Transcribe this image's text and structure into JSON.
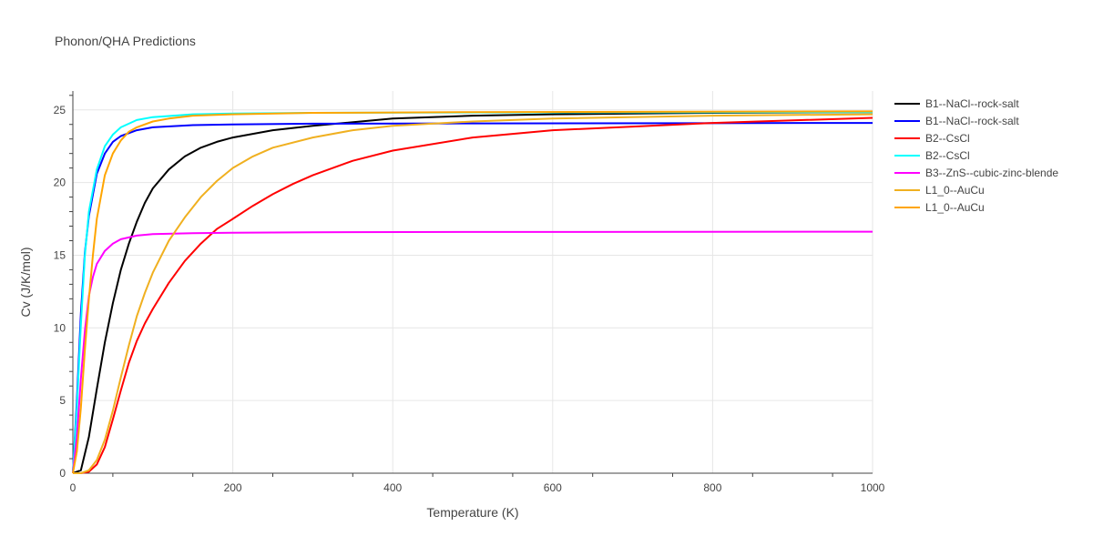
{
  "chart_data": {
    "type": "line",
    "title": "Phonon/QHA Predictions",
    "xlabel": "Temperature (K)",
    "ylabel": "Cv (J/K/mol)",
    "xlim": [
      0,
      1000
    ],
    "ylim": [
      0,
      26.3
    ],
    "x_ticks": [
      "0",
      "200",
      "400",
      "600",
      "800",
      "1000"
    ],
    "y_ticks": [
      "0",
      "5",
      "10",
      "15",
      "20",
      "25"
    ],
    "grid": true,
    "legend_position": "top-right, outside plot",
    "series": [
      {
        "name": "B1--NaCl--rock-salt",
        "color": "#000000",
        "x": [
          0,
          10,
          20,
          30,
          40,
          50,
          60,
          70,
          80,
          90,
          100,
          120,
          140,
          160,
          180,
          200,
          250,
          300,
          400,
          500,
          600,
          800,
          1000
        ],
        "y": [
          0,
          0.2,
          2.5,
          5.8,
          9.0,
          11.7,
          14.0,
          15.8,
          17.3,
          18.6,
          19.6,
          20.9,
          21.8,
          22.4,
          22.8,
          23.1,
          23.6,
          23.9,
          24.4,
          24.6,
          24.7,
          24.8,
          24.85
        ]
      },
      {
        "name": "B1--NaCl--rock-salt",
        "color": "#0000ff",
        "x": [
          0,
          5,
          10,
          15,
          20,
          30,
          40,
          50,
          60,
          80,
          100,
          150,
          200,
          300,
          500,
          1000
        ],
        "y": [
          0,
          5.0,
          11.0,
          15.2,
          17.7,
          20.6,
          22.0,
          22.8,
          23.2,
          23.6,
          23.8,
          23.95,
          24.0,
          24.05,
          24.07,
          24.1
        ]
      },
      {
        "name": "B2--CsCl",
        "color": "#ff0000",
        "x": [
          0,
          10,
          20,
          30,
          40,
          50,
          60,
          70,
          80,
          90,
          100,
          120,
          140,
          160,
          180,
          200,
          225,
          250,
          275,
          300,
          350,
          400,
          500,
          600,
          800,
          1000
        ],
        "y": [
          0,
          0,
          0.1,
          0.6,
          1.8,
          3.7,
          5.7,
          7.6,
          9.1,
          10.3,
          11.3,
          13.1,
          14.6,
          15.8,
          16.8,
          17.5,
          18.4,
          19.2,
          19.9,
          20.5,
          21.5,
          22.2,
          23.1,
          23.6,
          24.1,
          24.45
        ]
      },
      {
        "name": "B2--CsCl",
        "color": "#00ffff",
        "x": [
          0,
          5,
          10,
          15,
          20,
          30,
          40,
          50,
          60,
          80,
          100,
          150,
          200,
          300,
          500,
          1000
        ],
        "y": [
          0,
          4.5,
          10.2,
          15.0,
          18.0,
          20.9,
          22.5,
          23.3,
          23.8,
          24.3,
          24.5,
          24.7,
          24.75,
          24.8,
          24.82,
          24.85
        ]
      },
      {
        "name": "B3--ZnS--cubic-zinc-blende",
        "color": "#ff00ff",
        "x": [
          0,
          5,
          10,
          15,
          20,
          25,
          30,
          40,
          50,
          60,
          80,
          100,
          150,
          200,
          300,
          500,
          1000
        ],
        "y": [
          0,
          2.5,
          6.5,
          9.8,
          12.2,
          13.5,
          14.4,
          15.3,
          15.8,
          16.1,
          16.35,
          16.45,
          16.52,
          16.55,
          16.58,
          16.6,
          16.62
        ]
      },
      {
        "name": "L1_0--AuCu",
        "color": "#f0b020",
        "x": [
          0,
          10,
          20,
          30,
          40,
          50,
          60,
          70,
          80,
          90,
          100,
          120,
          140,
          160,
          180,
          200,
          225,
          250,
          300,
          350,
          400,
          500,
          600,
          800,
          1000
        ],
        "y": [
          0,
          0,
          0.2,
          0.9,
          2.3,
          4.3,
          6.6,
          8.8,
          10.8,
          12.4,
          13.8,
          16.0,
          17.6,
          19.0,
          20.1,
          21.0,
          21.8,
          22.4,
          23.1,
          23.6,
          23.9,
          24.2,
          24.4,
          24.6,
          24.7
        ]
      },
      {
        "name": "L1_0--AuCu",
        "color": "#ffa500",
        "x": [
          0,
          5,
          10,
          15,
          20,
          25,
          30,
          40,
          50,
          60,
          70,
          80,
          100,
          120,
          150,
          200,
          300,
          500,
          1000
        ],
        "y": [
          0,
          1.5,
          4.5,
          8.5,
          12.0,
          15.0,
          17.5,
          20.5,
          22.0,
          22.9,
          23.5,
          23.8,
          24.2,
          24.4,
          24.6,
          24.7,
          24.8,
          24.85,
          24.9
        ]
      }
    ]
  }
}
